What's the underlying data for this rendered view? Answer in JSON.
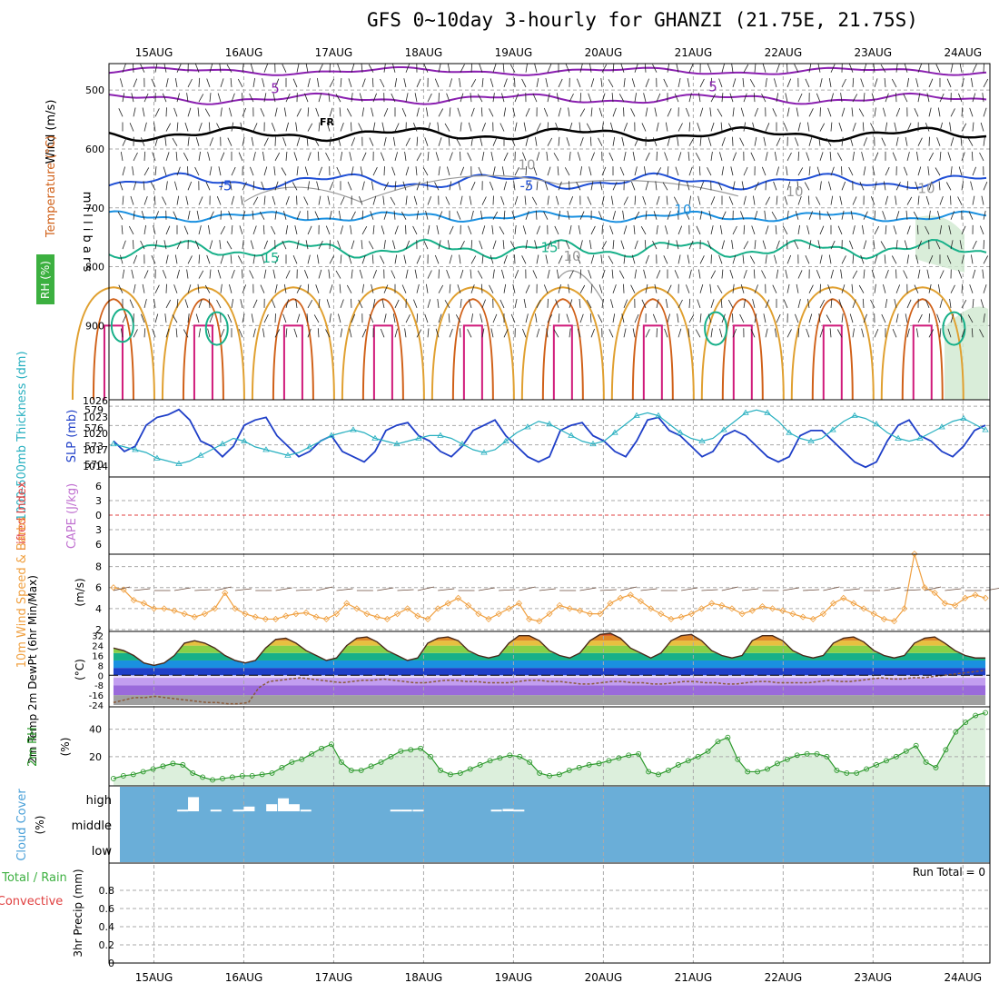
{
  "title": "GFS 0~10day 3-hourly for GHANZI (21.75E, 21.75S)",
  "dates": [
    "15AUG",
    "16AUG",
    "17AUG",
    "18AUG",
    "19AUG",
    "20AUG",
    "21AUG",
    "22AUG",
    "23AUG",
    "24AUG"
  ],
  "colors": {
    "grid": "#aaaaaa",
    "temp_purple": "#8a1fb0",
    "temp_blue": "#1f4fd6",
    "temp_lightblue": "#1a90e0",
    "temp_green": "#17b089",
    "temp_orange": "#e0a030",
    "temp_darkorange": "#d06018",
    "temp_magenta": "#d01a7a",
    "freezing": "#000000",
    "rh_contour": "#999999",
    "slp": "#1f3fc8",
    "thickness": "#28b0c0",
    "lifted_zero": "#e04040",
    "wind10": "#f0a040",
    "dewpoint": "#8a5a3a",
    "rh2m": "#2e9a2e",
    "cloud_bg": "#6aaed8",
    "cloud_bar": "#ffffff"
  },
  "panels": {
    "upper": {
      "y_label": "m i l l i b a r s",
      "legend_wind": "Wind (m/s)",
      "legend_temp": "Temperature (°C)",
      "legend_rh": "RH (%)",
      "levels": [
        "500",
        "600",
        "700",
        "800",
        "900"
      ],
      "contour_labels": [
        "5",
        "5",
        "FR",
        "-5",
        "-5",
        "10",
        "10",
        "10",
        "10",
        "15",
        "15",
        "10"
      ]
    },
    "slp": {
      "legend_thick": "1000-500mb Thickness (dm)",
      "legend_slp": "SLP (mb)",
      "left_ticks": [
        "579",
        "576",
        "573",
        "570"
      ],
      "right_ticks": [
        "1026",
        "1023",
        "1020",
        "1017",
        "1014"
      ]
    },
    "cape": {
      "legend_li": "Lifted Index",
      "legend_cape": "CAPE (J/kg)",
      "ticks": [
        "6",
        "3",
        "0",
        "3",
        "6"
      ]
    },
    "wind10": {
      "legend": "10m Wind Speed & Barbs",
      "unit": "(m/s)",
      "ticks": [
        "8",
        "6",
        "4",
        "2"
      ]
    },
    "temp2m": {
      "legend": "2m Temp 2m DewPt (6hr Min/Max)",
      "unit": "(°C)",
      "ticks": [
        "32",
        "24",
        "16",
        "8",
        "0",
        "-8",
        "-16",
        "-24"
      ]
    },
    "rh2m": {
      "legend": "2m RH",
      "unit": "(%)",
      "ticks": [
        "40",
        "20"
      ]
    },
    "cloud": {
      "legend": "Cloud Cover",
      "unit": "(%)",
      "levels": [
        "high",
        "middle",
        "low"
      ]
    },
    "precip": {
      "legend_total": "Total / Rain",
      "legend_conv": "Convective",
      "unit": "3hr Precip (mm)",
      "ticks": [
        "0.8",
        "0.6",
        "0.4",
        "0.2",
        "0"
      ],
      "run_total": "Run Total = 0"
    }
  },
  "chart_data": [
    {
      "type": "line",
      "name": "SLP",
      "ylabel": "SLP (mb)",
      "ylim": [
        1013,
        1026
      ],
      "x_range_days": [
        0.5,
        10.3
      ],
      "values": [
        1019,
        1017,
        1018,
        1022,
        1023.5,
        1024,
        1025,
        1023,
        1019,
        1018,
        1016,
        1018,
        1022,
        1023,
        1023.5,
        1020,
        1018,
        1016,
        1017,
        1019,
        1020,
        1017,
        1016,
        1015,
        1017,
        1021,
        1022,
        1022.5,
        1020,
        1019,
        1017,
        1016,
        1018,
        1021,
        1022,
        1023,
        1020,
        1018,
        1016,
        1015,
        1016,
        1021,
        1022,
        1022.5,
        1020,
        1019,
        1017,
        1016,
        1019,
        1023,
        1023.5,
        1021,
        1020,
        1018,
        1016,
        1017,
        1020,
        1021,
        1020,
        1018,
        1016,
        1015,
        1016,
        1020,
        1021,
        1021,
        1019,
        1017,
        1015,
        1014,
        1015,
        1019,
        1022,
        1023,
        1020,
        1019,
        1017,
        1016,
        1018,
        1021,
        1022
      ]
    },
    {
      "type": "line",
      "name": "1000-500mb Thickness",
      "ylabel": "1000-500mb Thickness (dm)",
      "ylim": [
        568,
        580
      ],
      "values": [
        573,
        572.5,
        572,
        571.5,
        570.5,
        570,
        569.5,
        570,
        571,
        572,
        573,
        574,
        573.5,
        572.5,
        572,
        571.5,
        571,
        571.5,
        572.5,
        573.5,
        574.5,
        575,
        575.5,
        575,
        574,
        573.5,
        573,
        573.5,
        574,
        574.5,
        574.5,
        574,
        573,
        572,
        571.5,
        572,
        573.5,
        575,
        576,
        577,
        576.5,
        575.5,
        574.5,
        573.5,
        573,
        573.5,
        575,
        576.5,
        578,
        578.5,
        578,
        576.5,
        575,
        574,
        573.5,
        574,
        575.5,
        577,
        578.5,
        579,
        578.5,
        577,
        575,
        574,
        573.5,
        574,
        575.5,
        577,
        578,
        577.5,
        576.5,
        575,
        574,
        573.5,
        574,
        575,
        576,
        577,
        577.5,
        576.5,
        575.5
      ]
    },
    {
      "type": "line",
      "name": "10m Wind Speed",
      "ylabel": "(m/s)",
      "ylim": [
        2,
        9
      ],
      "values": [
        6,
        5.8,
        4.8,
        4.5,
        4,
        4,
        3.8,
        3.5,
        3.2,
        3.5,
        4,
        5.5,
        4,
        3.5,
        3.2,
        3,
        3,
        3.3,
        3.5,
        3.6,
        3.2,
        3,
        3.5,
        4.5,
        4,
        3.5,
        3.2,
        3,
        3.5,
        4,
        3.3,
        3,
        4,
        4.5,
        5,
        4.3,
        3.5,
        3,
        3.5,
        4,
        4.5,
        3,
        2.8,
        3.5,
        4.3,
        4,
        3.8,
        3.5,
        3.5,
        4.5,
        5,
        5.3,
        4.7,
        4,
        3.5,
        3,
        3.2,
        3.5,
        4,
        4.5,
        4.3,
        4,
        3.5,
        3.8,
        4.2,
        4,
        3.8,
        3.5,
        3.2,
        3,
        3.5,
        4.5,
        5,
        4.5,
        4,
        3.5,
        3,
        2.8,
        4,
        9.2,
        6,
        5.5,
        4.5,
        4.3,
        5,
        5.3,
        5
      ]
    },
    {
      "type": "area",
      "name": "2m Temp",
      "ylabel": "(°C)",
      "ylim": [
        -24,
        34
      ],
      "values": [
        22,
        20,
        16,
        10,
        8,
        10,
        16,
        26,
        28,
        26,
        22,
        16,
        12,
        10,
        12,
        22,
        29,
        30,
        26,
        20,
        16,
        12,
        14,
        24,
        30,
        31,
        27,
        20,
        16,
        12,
        14,
        26,
        30,
        31,
        28,
        20,
        16,
        14,
        16,
        26,
        32,
        32,
        28,
        20,
        16,
        14,
        18,
        28,
        33,
        34,
        30,
        22,
        18,
        14,
        18,
        28,
        32,
        33,
        28,
        20,
        16,
        14,
        16,
        28,
        32,
        32,
        28,
        20,
        16,
        14,
        16,
        26,
        30,
        31,
        27,
        20,
        16,
        14,
        16,
        26,
        30,
        31,
        26,
        20,
        16,
        14,
        14
      ]
    },
    {
      "type": "line",
      "name": "2m DewPt",
      "ylabel": "(°C)",
      "values": [
        -22,
        -20,
        -18,
        -18,
        -17,
        -18,
        -19,
        -20,
        -21,
        -22,
        -22,
        -23,
        -23,
        -22,
        -10,
        -5,
        -4,
        -3,
        -2,
        -3,
        -4,
        -5,
        -6,
        -5,
        -4,
        -4,
        -3,
        -4,
        -5,
        -6,
        -6,
        -5,
        -4,
        -4,
        -5,
        -5,
        -6,
        -6,
        -6,
        -5,
        -4,
        -4,
        -5,
        -5,
        -6,
        -7,
        -7,
        -6,
        -5,
        -5,
        -6,
        -6,
        -7,
        -7,
        -6,
        -5,
        -5,
        -6,
        -6,
        -7,
        -7,
        -6,
        -5,
        -5,
        -6,
        -6,
        -6,
        -6,
        -5,
        -4,
        -5,
        -5,
        -4,
        -3,
        -2,
        -3,
        -3,
        -2,
        -2,
        -1,
        0,
        1,
        2,
        3,
        4
      ]
    },
    {
      "type": "area",
      "name": "2m RH",
      "ylabel": "(%)",
      "ylim": [
        0,
        55
      ],
      "values": [
        4,
        6,
        7,
        9,
        11,
        13,
        15,
        14,
        8,
        5,
        3,
        4,
        5,
        6,
        6,
        7,
        8,
        12,
        16,
        18,
        22,
        26,
        29,
        16,
        10,
        10,
        13,
        16,
        20,
        24,
        25,
        26,
        20,
        10,
        7,
        8,
        11,
        14,
        17,
        19,
        21,
        20,
        16,
        8,
        6,
        7,
        10,
        12,
        14,
        15,
        17,
        19,
        21,
        22,
        9,
        7,
        10,
        14,
        17,
        20,
        24,
        31,
        34,
        18,
        9,
        9,
        11,
        15,
        18,
        21,
        22,
        22,
        20,
        10,
        8,
        8,
        11,
        14,
        17,
        20,
        24,
        28,
        16,
        12,
        25,
        38,
        45,
        50,
        52
      ]
    },
    {
      "type": "bar",
      "name": "Cloud Cover high",
      "ylabel": "(%)",
      "note_levels": [
        "high",
        "middle",
        "low"
      ],
      "bars": [
        {
          "day": 1.32,
          "value": 7
        },
        {
          "day": 1.44,
          "value": 60
        },
        {
          "day": 1.69,
          "value": 7
        },
        {
          "day": 1.94,
          "value": 7
        },
        {
          "day": 2.06,
          "value": 20
        },
        {
          "day": 2.31,
          "value": 30
        },
        {
          "day": 2.44,
          "value": 55
        },
        {
          "day": 2.56,
          "value": 30
        },
        {
          "day": 2.69,
          "value": 7
        },
        {
          "day": 3.69,
          "value": 7
        },
        {
          "day": 3.81,
          "value": 7
        },
        {
          "day": 3.94,
          "value": 7
        },
        {
          "day": 4.81,
          "value": 7
        },
        {
          "day": 4.94,
          "value": 10
        },
        {
          "day": 5.06,
          "value": 7
        }
      ]
    },
    {
      "type": "bar",
      "name": "3hr Precip",
      "ylabel": "3hr Precip (mm)",
      "ylim": [
        0,
        1
      ],
      "values": []
    }
  ]
}
